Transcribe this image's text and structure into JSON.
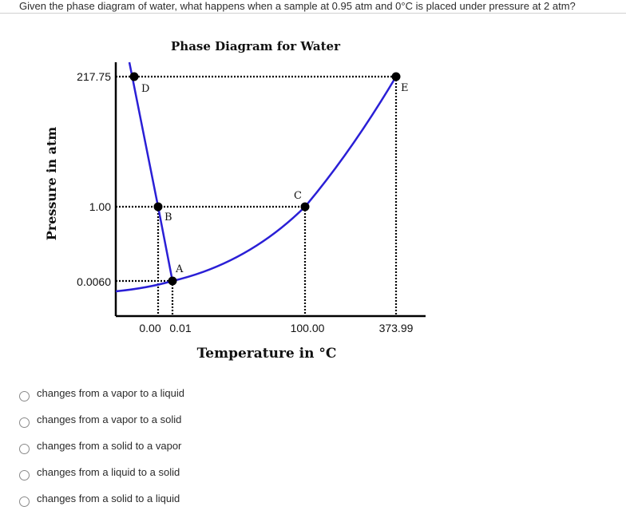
{
  "question": {
    "text": "Given the phase diagram of water, what happens when a sample at 0.95 atm and 0°C is placed under pressure at 2 atm?"
  },
  "diagram": {
    "title": "Phase Diagram for Water",
    "ylabel": "Pressure in atm",
    "xlabel": "Temperature in °C",
    "y_ticks": [
      "217.75",
      "1.00",
      "0.0060"
    ],
    "x_ticks": [
      "0.00",
      "0.01",
      "100.00",
      "373.99"
    ],
    "points": [
      {
        "label": "D",
        "temperature": "",
        "pressure": "217.75"
      },
      {
        "label": "B",
        "temperature": "0.00",
        "pressure": "1.00"
      },
      {
        "label": "A",
        "temperature": "0.01",
        "pressure": "0.0060"
      },
      {
        "label": "C",
        "temperature": "100.00",
        "pressure": "1.00"
      },
      {
        "label": "E",
        "temperature": "373.99",
        "pressure": "217.75"
      }
    ],
    "curve_color": "#2a1fd6",
    "axis_color": "#000000"
  },
  "options": [
    {
      "label": "changes from a vapor to a liquid",
      "selected": false
    },
    {
      "label": "changes from a vapor to a solid",
      "selected": false
    },
    {
      "label": "changes from a solid to a vapor",
      "selected": false
    },
    {
      "label": "changes from a liquid to a solid",
      "selected": false
    },
    {
      "label": "changes from a solid to a liquid",
      "selected": false
    }
  ]
}
